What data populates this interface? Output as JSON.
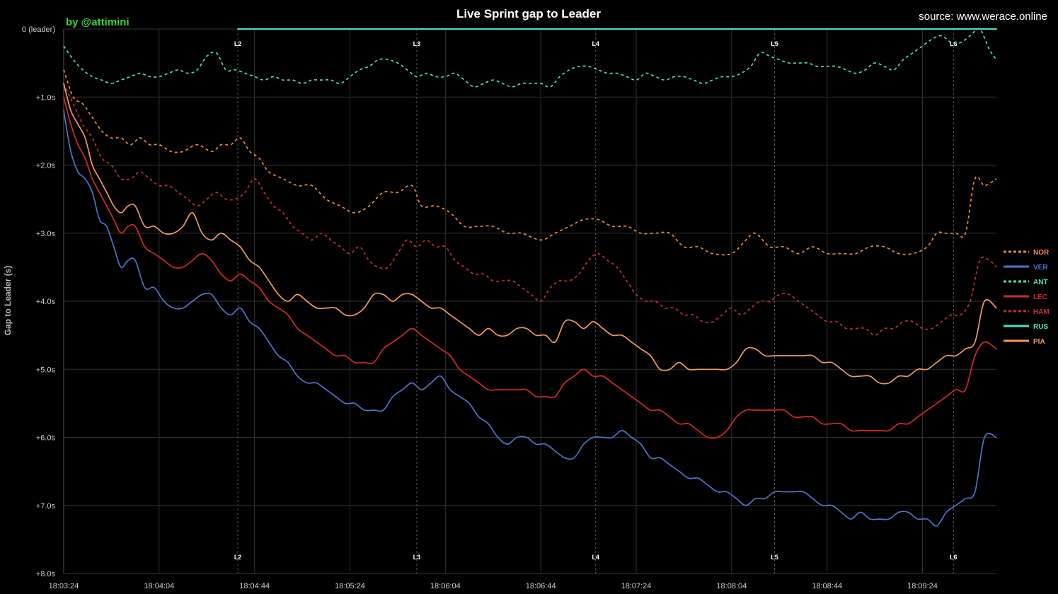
{
  "chart_data": {
    "type": "line",
    "title": "Live Sprint gap to Leader",
    "credit": "by @attimini",
    "source": "source: www.werace.online",
    "ylabel": "Gap to Leader (s)",
    "xlabel": "",
    "x_tick_labels": [
      "18:03:24",
      "18:04:04",
      "18:04:44",
      "18:05:24",
      "18:06:04",
      "18:06:44",
      "18:07:24",
      "18:08:04",
      "18:08:44",
      "18:09:24"
    ],
    "x_tick_seconds": [
      0,
      40,
      80,
      120,
      160,
      200,
      240,
      280,
      320,
      360
    ],
    "x_range_seconds": [
      0,
      391
    ],
    "y_tick_labels": [
      "0 (leader)",
      "+1.0s",
      "+2.0s",
      "+3.0s",
      "+4.0s",
      "+5.0s",
      "+6.0s",
      "+7.0s",
      "+8.0s"
    ],
    "y_tick_values": [
      0,
      1,
      2,
      3,
      4,
      5,
      6,
      7,
      8
    ],
    "ylim": [
      8,
      0
    ],
    "y_inverted": true,
    "grid": true,
    "legend_position": "right",
    "lap_markers": [
      {
        "label": "L2",
        "t": 73
      },
      {
        "label": "L3",
        "t": 148
      },
      {
        "label": "L4",
        "t": 223
      },
      {
        "label": "L5",
        "t": 298
      },
      {
        "label": "L6",
        "t": 373
      }
    ],
    "series": [
      {
        "name": "NOR",
        "color": "#f08a4b",
        "dashed": true,
        "t": [
          0,
          4,
          8,
          12,
          16,
          20,
          24,
          28,
          32,
          36,
          40,
          45,
          50,
          56,
          62,
          66,
          70,
          74,
          78,
          82,
          86,
          92,
          98,
          104,
          110,
          116,
          122,
          128,
          134,
          140,
          146,
          150,
          156,
          162,
          168,
          174,
          180,
          186,
          192,
          200,
          206,
          212,
          218,
          224,
          230,
          236,
          242,
          248,
          254,
          260,
          266,
          272,
          280,
          286,
          290,
          296,
          302,
          308,
          314,
          320,
          326,
          332,
          338,
          344,
          350,
          356,
          362,
          366,
          370,
          374,
          378,
          382,
          386,
          391
        ],
        "v": [
          0.6,
          1.0,
          1.1,
          1.3,
          1.5,
          1.6,
          1.6,
          1.7,
          1.6,
          1.7,
          1.7,
          1.8,
          1.8,
          1.7,
          1.8,
          1.7,
          1.7,
          1.6,
          1.8,
          1.9,
          2.1,
          2.2,
          2.3,
          2.3,
          2.5,
          2.6,
          2.7,
          2.6,
          2.4,
          2.4,
          2.3,
          2.6,
          2.6,
          2.7,
          2.9,
          2.9,
          2.9,
          3.0,
          3.0,
          3.1,
          3.0,
          2.9,
          2.8,
          2.8,
          2.9,
          2.9,
          3.0,
          3.0,
          3.0,
          3.2,
          3.2,
          3.3,
          3.3,
          3.1,
          3.0,
          3.2,
          3.2,
          3.3,
          3.2,
          3.3,
          3.3,
          3.3,
          3.2,
          3.2,
          3.3,
          3.3,
          3.2,
          3.0,
          3.0,
          3.0,
          3.0,
          2.2,
          2.3,
          2.2
        ]
      },
      {
        "name": "VER",
        "color": "#4f74c8",
        "dashed": false,
        "t": [
          0,
          3,
          6,
          9,
          12,
          15,
          18,
          21,
          24,
          27,
          30,
          34,
          38,
          42,
          46,
          50,
          54,
          58,
          62,
          66,
          70,
          74,
          78,
          82,
          86,
          90,
          94,
          98,
          102,
          106,
          110,
          114,
          118,
          122,
          126,
          130,
          134,
          138,
          142,
          146,
          150,
          154,
          158,
          162,
          166,
          170,
          174,
          178,
          182,
          186,
          190,
          194,
          198,
          202,
          206,
          210,
          214,
          218,
          222,
          226,
          230,
          234,
          238,
          242,
          246,
          250,
          254,
          258,
          262,
          266,
          270,
          274,
          278,
          282,
          286,
          290,
          294,
          298,
          302,
          306,
          310,
          314,
          318,
          322,
          326,
          330,
          334,
          338,
          342,
          346,
          350,
          354,
          358,
          362,
          366,
          370,
          374,
          378,
          382,
          386,
          391
        ],
        "v": [
          1.2,
          1.8,
          2.1,
          2.2,
          2.4,
          2.8,
          2.9,
          3.2,
          3.5,
          3.4,
          3.4,
          3.8,
          3.8,
          4.0,
          4.1,
          4.1,
          4.0,
          3.9,
          3.9,
          4.1,
          4.2,
          4.1,
          4.3,
          4.4,
          4.6,
          4.8,
          4.9,
          5.1,
          5.2,
          5.2,
          5.3,
          5.4,
          5.5,
          5.5,
          5.6,
          5.6,
          5.6,
          5.4,
          5.3,
          5.2,
          5.3,
          5.2,
          5.1,
          5.3,
          5.4,
          5.5,
          5.7,
          5.8,
          6.0,
          6.1,
          6.0,
          6.0,
          6.1,
          6.1,
          6.2,
          6.3,
          6.3,
          6.1,
          6.0,
          6.0,
          6.0,
          5.9,
          6.0,
          6.1,
          6.3,
          6.3,
          6.4,
          6.5,
          6.6,
          6.6,
          6.7,
          6.8,
          6.8,
          6.9,
          7.0,
          6.9,
          6.9,
          6.8,
          6.8,
          6.8,
          6.8,
          6.9,
          7.0,
          7.0,
          7.1,
          7.2,
          7.1,
          7.2,
          7.2,
          7.2,
          7.1,
          7.1,
          7.2,
          7.2,
          7.3,
          7.1,
          7.0,
          6.9,
          6.8,
          6.0,
          6.0
        ]
      },
      {
        "name": "ANT",
        "color": "#4ce0c0",
        "dashed": true,
        "t": [
          0,
          4,
          8,
          12,
          16,
          20,
          24,
          28,
          32,
          36,
          40,
          44,
          48,
          52,
          56,
          60,
          64,
          68,
          72,
          76,
          80,
          84,
          88,
          92,
          96,
          100,
          104,
          108,
          112,
          116,
          120,
          124,
          128,
          132,
          136,
          140,
          144,
          148,
          152,
          156,
          160,
          164,
          168,
          172,
          176,
          180,
          184,
          188,
          192,
          196,
          200,
          204,
          208,
          212,
          216,
          220,
          224,
          228,
          232,
          236,
          240,
          244,
          248,
          252,
          256,
          260,
          264,
          268,
          272,
          276,
          280,
          284,
          288,
          292,
          296,
          300,
          304,
          308,
          312,
          316,
          320,
          324,
          328,
          332,
          336,
          340,
          344,
          348,
          352,
          356,
          360,
          364,
          368,
          372,
          376,
          380,
          384,
          388,
          391
        ],
        "v": [
          0.25,
          0.45,
          0.6,
          0.7,
          0.75,
          0.8,
          0.75,
          0.7,
          0.65,
          0.7,
          0.7,
          0.65,
          0.6,
          0.65,
          0.6,
          0.4,
          0.35,
          0.6,
          0.6,
          0.65,
          0.7,
          0.75,
          0.7,
          0.75,
          0.75,
          0.8,
          0.75,
          0.75,
          0.75,
          0.8,
          0.7,
          0.6,
          0.55,
          0.45,
          0.45,
          0.5,
          0.6,
          0.7,
          0.65,
          0.7,
          0.7,
          0.65,
          0.75,
          0.85,
          0.8,
          0.75,
          0.8,
          0.85,
          0.8,
          0.8,
          0.8,
          0.85,
          0.7,
          0.6,
          0.55,
          0.55,
          0.6,
          0.65,
          0.65,
          0.7,
          0.75,
          0.65,
          0.7,
          0.75,
          0.7,
          0.7,
          0.75,
          0.8,
          0.75,
          0.7,
          0.7,
          0.65,
          0.55,
          0.35,
          0.4,
          0.45,
          0.5,
          0.5,
          0.5,
          0.55,
          0.55,
          0.55,
          0.6,
          0.65,
          0.6,
          0.5,
          0.55,
          0.6,
          0.45,
          0.35,
          0.25,
          0.15,
          0.1,
          0.2,
          0.2,
          0.1,
          0.0,
          0.3,
          0.45,
          0.45
        ]
      },
      {
        "name": "LEC",
        "color": "#d42a2a",
        "dashed": false,
        "t": [
          0,
          3,
          6,
          9,
          12,
          15,
          18,
          21,
          24,
          27,
          30,
          34,
          38,
          42,
          46,
          50,
          54,
          58,
          62,
          66,
          70,
          74,
          78,
          82,
          86,
          90,
          94,
          98,
          102,
          106,
          110,
          114,
          118,
          122,
          126,
          130,
          134,
          138,
          142,
          146,
          150,
          154,
          158,
          162,
          166,
          170,
          174,
          178,
          182,
          186,
          190,
          194,
          198,
          202,
          206,
          210,
          214,
          218,
          222,
          226,
          230,
          234,
          238,
          242,
          246,
          250,
          254,
          258,
          262,
          266,
          270,
          274,
          278,
          282,
          286,
          290,
          294,
          298,
          302,
          306,
          310,
          314,
          318,
          322,
          326,
          330,
          334,
          338,
          342,
          346,
          350,
          354,
          358,
          362,
          366,
          370,
          374,
          378,
          382,
          386,
          391
        ],
        "v": [
          1.0,
          1.4,
          1.7,
          1.9,
          2.2,
          2.4,
          2.6,
          2.8,
          3.0,
          2.9,
          2.9,
          3.2,
          3.3,
          3.4,
          3.5,
          3.5,
          3.4,
          3.3,
          3.4,
          3.6,
          3.7,
          3.6,
          3.7,
          3.8,
          4.0,
          4.1,
          4.2,
          4.4,
          4.5,
          4.6,
          4.7,
          4.8,
          4.8,
          4.9,
          4.9,
          4.9,
          4.7,
          4.6,
          4.5,
          4.4,
          4.5,
          4.6,
          4.7,
          4.8,
          5.0,
          5.1,
          5.2,
          5.3,
          5.3,
          5.3,
          5.3,
          5.3,
          5.4,
          5.4,
          5.4,
          5.2,
          5.1,
          5.0,
          5.1,
          5.1,
          5.2,
          5.3,
          5.4,
          5.5,
          5.6,
          5.6,
          5.7,
          5.8,
          5.8,
          5.9,
          6.0,
          6.0,
          5.9,
          5.7,
          5.6,
          5.6,
          5.6,
          5.6,
          5.6,
          5.7,
          5.7,
          5.7,
          5.8,
          5.8,
          5.8,
          5.9,
          5.9,
          5.9,
          5.9,
          5.9,
          5.8,
          5.8,
          5.7,
          5.6,
          5.5,
          5.4,
          5.3,
          5.3,
          4.8,
          4.6,
          4.7
        ]
      },
      {
        "name": "HAM",
        "color": "#c8322f",
        "dashed": true,
        "t": [
          0,
          4,
          8,
          12,
          16,
          20,
          24,
          28,
          32,
          36,
          40,
          44,
          48,
          52,
          56,
          60,
          64,
          68,
          72,
          76,
          80,
          84,
          88,
          92,
          96,
          100,
          104,
          108,
          112,
          116,
          120,
          124,
          128,
          132,
          136,
          140,
          144,
          148,
          152,
          156,
          160,
          164,
          168,
          172,
          176,
          180,
          184,
          188,
          192,
          196,
          200,
          204,
          208,
          212,
          216,
          220,
          224,
          228,
          232,
          236,
          240,
          244,
          248,
          252,
          256,
          260,
          264,
          268,
          272,
          276,
          280,
          284,
          288,
          292,
          296,
          300,
          304,
          308,
          312,
          316,
          320,
          324,
          328,
          332,
          336,
          340,
          344,
          348,
          352,
          356,
          360,
          364,
          368,
          372,
          376,
          380,
          384,
          388,
          391
        ],
        "v": [
          0.8,
          1.1,
          1.4,
          1.6,
          1.9,
          2.0,
          2.2,
          2.2,
          2.1,
          2.2,
          2.3,
          2.3,
          2.4,
          2.5,
          2.6,
          2.5,
          2.4,
          2.5,
          2.5,
          2.4,
          2.2,
          2.4,
          2.6,
          2.7,
          2.9,
          3.0,
          3.1,
          3.0,
          3.1,
          3.2,
          3.3,
          3.2,
          3.4,
          3.5,
          3.5,
          3.3,
          3.1,
          3.2,
          3.1,
          3.2,
          3.2,
          3.4,
          3.5,
          3.6,
          3.6,
          3.7,
          3.7,
          3.7,
          3.8,
          3.9,
          4.0,
          3.8,
          3.7,
          3.7,
          3.6,
          3.4,
          3.3,
          3.4,
          3.5,
          3.7,
          3.9,
          4.0,
          4.0,
          4.1,
          4.1,
          4.2,
          4.2,
          4.3,
          4.3,
          4.2,
          4.1,
          4.2,
          4.1,
          4.0,
          4.0,
          3.9,
          3.9,
          4.0,
          4.1,
          4.2,
          4.3,
          4.3,
          4.4,
          4.4,
          4.4,
          4.5,
          4.4,
          4.4,
          4.3,
          4.3,
          4.4,
          4.4,
          4.3,
          4.2,
          4.2,
          4.0,
          3.4,
          3.4,
          3.5
        ]
      },
      {
        "name": "RUS",
        "color": "#4ce0c0",
        "dashed": false,
        "t": [
          73,
          391
        ],
        "v": [
          0,
          0
        ]
      },
      {
        "name": "PIA",
        "color": "#f39a60",
        "dashed": false,
        "t": [
          0,
          3,
          6,
          9,
          12,
          15,
          18,
          21,
          24,
          27,
          30,
          34,
          38,
          42,
          46,
          50,
          54,
          58,
          62,
          66,
          70,
          74,
          78,
          82,
          86,
          90,
          94,
          98,
          102,
          106,
          110,
          114,
          118,
          122,
          126,
          130,
          134,
          138,
          142,
          146,
          150,
          154,
          158,
          162,
          166,
          170,
          174,
          178,
          182,
          186,
          190,
          194,
          198,
          202,
          206,
          210,
          214,
          218,
          222,
          226,
          230,
          234,
          238,
          242,
          246,
          250,
          254,
          258,
          262,
          266,
          270,
          274,
          278,
          282,
          286,
          290,
          294,
          298,
          302,
          306,
          310,
          314,
          318,
          322,
          326,
          330,
          334,
          338,
          342,
          346,
          350,
          354,
          358,
          362,
          366,
          370,
          374,
          378,
          382,
          386,
          391
        ],
        "v": [
          0.8,
          1.2,
          1.4,
          1.6,
          2.0,
          2.2,
          2.4,
          2.6,
          2.7,
          2.6,
          2.6,
          2.9,
          2.9,
          3.0,
          3.0,
          2.9,
          2.7,
          3.0,
          3.1,
          3.0,
          3.1,
          3.2,
          3.4,
          3.5,
          3.7,
          3.9,
          4.0,
          3.9,
          4.0,
          4.1,
          4.1,
          4.1,
          4.2,
          4.2,
          4.1,
          3.9,
          3.9,
          4.0,
          3.9,
          3.9,
          4.0,
          4.1,
          4.1,
          4.2,
          4.3,
          4.4,
          4.5,
          4.4,
          4.5,
          4.5,
          4.4,
          4.4,
          4.5,
          4.5,
          4.6,
          4.3,
          4.3,
          4.4,
          4.3,
          4.4,
          4.5,
          4.5,
          4.6,
          4.7,
          4.8,
          5.0,
          5.0,
          4.9,
          5.0,
          5.0,
          5.0,
          5.0,
          5.0,
          4.9,
          4.7,
          4.7,
          4.8,
          4.8,
          4.8,
          4.8,
          4.8,
          4.8,
          4.9,
          4.9,
          5.0,
          5.1,
          5.1,
          5.1,
          5.2,
          5.2,
          5.1,
          5.1,
          5.0,
          5.0,
          4.9,
          4.8,
          4.8,
          4.7,
          4.6,
          4.0,
          4.1
        ]
      }
    ]
  }
}
